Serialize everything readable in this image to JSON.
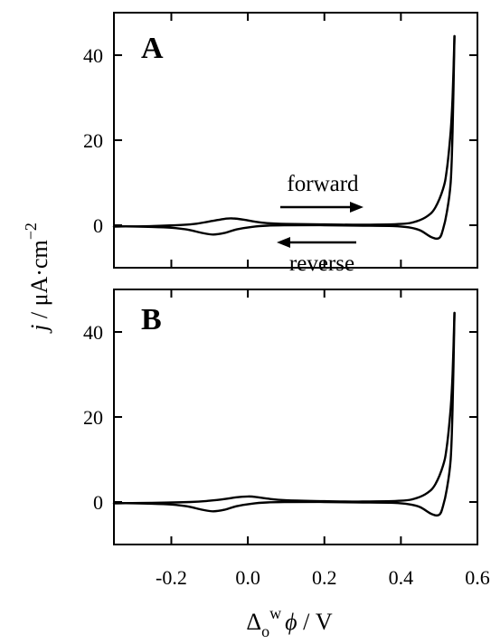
{
  "chart_data": [
    {
      "type": "line",
      "panel_label": "A",
      "annotations": [
        "forward",
        "reverse"
      ],
      "xlabel": "",
      "ylabel": "j / μA·cm−2",
      "xlim": [
        -0.35,
        0.6
      ],
      "ylim": [
        -10,
        50
      ],
      "x_ticks": [
        -0.2,
        0.0,
        0.2,
        0.4,
        0.6
      ],
      "x_tick_labels": [
        "-0.2",
        "0.0",
        "0.2",
        "0.4",
        "0.6"
      ],
      "y_ticks": [
        0,
        20,
        40
      ],
      "y_tick_labels": [
        "0",
        "20",
        "40"
      ],
      "series": [
        {
          "x": [
            -0.35,
            -0.25,
            -0.15,
            -0.1,
            -0.06,
            -0.04,
            -0.01,
            0.02,
            0.05,
            0.1,
            0.2,
            0.3,
            0.4,
            0.44,
            0.47,
            0.49,
            0.51,
            0.52,
            0.53,
            0.535,
            0.54
          ],
          "y": [
            -0.3,
            -0.2,
            0.2,
            0.9,
            1.5,
            1.6,
            1.3,
            0.8,
            0.5,
            0.3,
            0.2,
            0.1,
            0.3,
            0.9,
            2.2,
            4.2,
            8.5,
            13.0,
            22.0,
            30.0,
            44.5
          ]
        },
        {
          "x": [
            0.54,
            0.535,
            0.53,
            0.52,
            0.51,
            0.5,
            0.48,
            0.45,
            0.42,
            0.38,
            0.3,
            0.2,
            0.1,
            0.05,
            0.01,
            -0.03,
            -0.06,
            -0.09,
            -0.12,
            -0.16,
            -0.2,
            -0.25,
            -0.3,
            -0.35
          ],
          "y": [
            44.5,
            22.0,
            10.0,
            3.0,
            -1.0,
            -3.0,
            -2.8,
            -1.2,
            -0.5,
            -0.2,
            -0.1,
            0.0,
            0.0,
            -0.1,
            -0.4,
            -1.0,
            -1.8,
            -2.2,
            -1.8,
            -1.0,
            -0.6,
            -0.4,
            -0.3,
            -0.3
          ]
        }
      ]
    },
    {
      "type": "line",
      "panel_label": "B",
      "xlabel": "Δ o w ϕ / V",
      "ylabel": "",
      "xlim": [
        -0.35,
        0.6
      ],
      "ylim": [
        -10,
        50
      ],
      "x_ticks": [
        -0.2,
        0.0,
        0.2,
        0.4,
        0.6
      ],
      "x_tick_labels": [
        "-0.2",
        "0.0",
        "0.2",
        "0.4",
        "0.6"
      ],
      "y_ticks": [
        0,
        20,
        40
      ],
      "y_tick_labels": [
        "0",
        "20",
        "40"
      ],
      "series": [
        {
          "x": [
            -0.35,
            -0.25,
            -0.15,
            -0.1,
            -0.06,
            -0.03,
            0.0,
            0.02,
            0.05,
            0.1,
            0.2,
            0.3,
            0.4,
            0.44,
            0.47,
            0.49,
            0.51,
            0.52,
            0.53,
            0.535,
            0.54
          ],
          "y": [
            -0.3,
            -0.2,
            0.0,
            0.3,
            0.7,
            1.1,
            1.3,
            1.2,
            0.8,
            0.4,
            0.2,
            0.1,
            0.3,
            0.9,
            2.2,
            4.2,
            8.5,
            13.0,
            22.0,
            30.0,
            44.5
          ]
        },
        {
          "x": [
            0.54,
            0.535,
            0.53,
            0.52,
            0.51,
            0.5,
            0.48,
            0.45,
            0.42,
            0.38,
            0.3,
            0.2,
            0.1,
            0.05,
            0.01,
            -0.03,
            -0.06,
            -0.09,
            -0.12,
            -0.16,
            -0.2,
            -0.25,
            -0.3,
            -0.35
          ],
          "y": [
            44.5,
            22.0,
            10.0,
            3.0,
            -1.0,
            -3.0,
            -2.8,
            -1.2,
            -0.5,
            -0.2,
            -0.1,
            0.0,
            0.0,
            -0.1,
            -0.4,
            -1.0,
            -1.8,
            -2.2,
            -1.8,
            -1.0,
            -0.6,
            -0.4,
            -0.3,
            -0.3
          ]
        }
      ]
    }
  ]
}
